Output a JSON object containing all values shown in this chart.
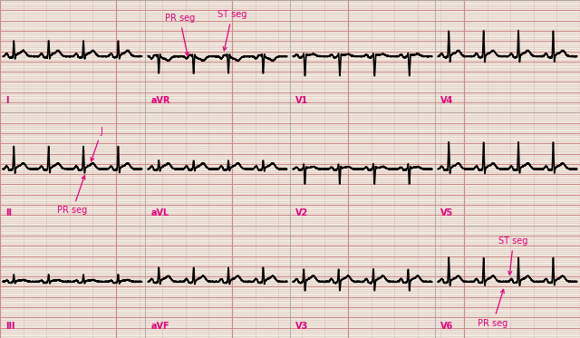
{
  "background_color": "#f0ece0",
  "grid_minor_color": "#ddbcbc",
  "grid_major_color": "#cc8888",
  "ecg_color": "#000000",
  "annotation_color": "#e6007e",
  "fig_width": 6.4,
  "fig_height": 3.73,
  "row_labels": [
    [
      "I",
      "aVR",
      "V1",
      "V4"
    ],
    [
      "II",
      "aVL",
      "V2",
      "V5"
    ],
    [
      "III",
      "aVF",
      "V3",
      "V6"
    ]
  ],
  "label_positions": [
    [
      [
        0.01,
        -0.85
      ],
      [
        0.26,
        -0.85
      ],
      [
        0.51,
        -0.85
      ],
      [
        0.76,
        -0.85
      ]
    ],
    [
      [
        0.01,
        -0.85
      ],
      [
        0.26,
        -0.85
      ],
      [
        0.51,
        -0.85
      ],
      [
        0.76,
        -0.85
      ]
    ],
    [
      [
        0.01,
        -0.85
      ],
      [
        0.26,
        -0.85
      ],
      [
        0.51,
        -0.85
      ],
      [
        0.76,
        -0.85
      ]
    ]
  ]
}
